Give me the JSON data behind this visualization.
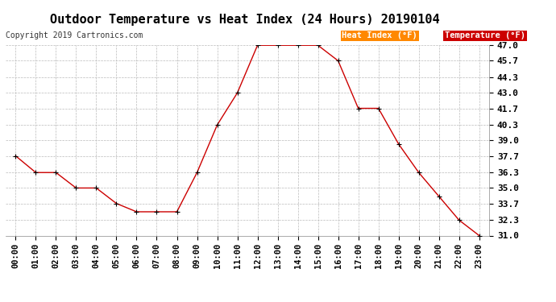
{
  "title": "Outdoor Temperature vs Heat Index (24 Hours) 20190104",
  "copyright": "Copyright 2019 Cartronics.com",
  "hours": [
    "00:00",
    "01:00",
    "02:00",
    "03:00",
    "04:00",
    "05:00",
    "06:00",
    "07:00",
    "08:00",
    "09:00",
    "10:00",
    "11:00",
    "12:00",
    "13:00",
    "14:00",
    "15:00",
    "16:00",
    "17:00",
    "18:00",
    "19:00",
    "20:00",
    "21:00",
    "22:00",
    "23:00"
  ],
  "temperature": [
    37.7,
    36.3,
    36.3,
    35.0,
    35.0,
    33.7,
    33.0,
    33.0,
    33.0,
    36.3,
    40.3,
    43.0,
    47.0,
    47.0,
    47.0,
    47.0,
    45.7,
    41.7,
    41.7,
    38.7,
    36.3,
    34.3,
    32.3,
    31.0
  ],
  "line_color": "#cc0000",
  "marker_color": "#000000",
  "grid_color": "#bbbbbb",
  "background_color": "#ffffff",
  "ylim_min": 31.0,
  "ylim_max": 47.0,
  "yticks": [
    31.0,
    32.3,
    33.7,
    35.0,
    36.3,
    37.7,
    39.0,
    40.3,
    41.7,
    43.0,
    44.3,
    45.7,
    47.0
  ],
  "legend_heat_index_text": "Heat Index (°F)",
  "legend_heat_index_bg": "#ff8800",
  "legend_temp_text": "Temperature (°F)",
  "legend_temp_bg": "#cc0000",
  "title_fontsize": 11,
  "copyright_fontsize": 7,
  "tick_fontsize": 7.5,
  "ytick_fontsize": 8,
  "legend_fontsize": 7.5
}
